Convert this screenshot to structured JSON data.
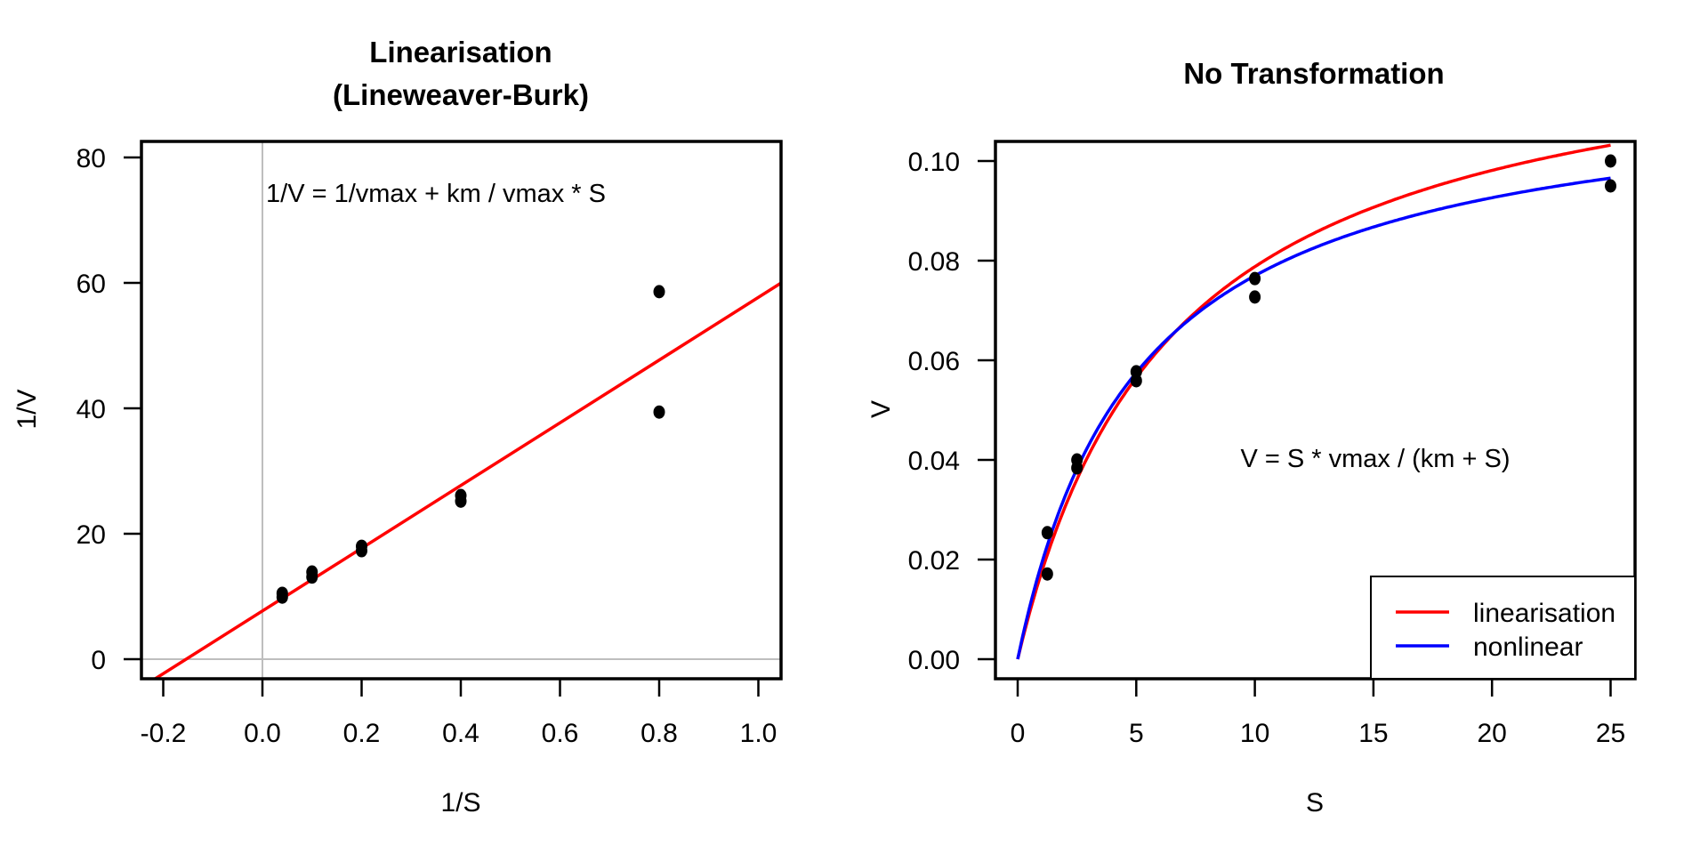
{
  "chart_data": [
    {
      "type": "scatter",
      "title_lines": [
        "Linearisation",
        "(Lineweaver-Burk)"
      ],
      "xlabel": "1/S",
      "ylabel": "1/V",
      "xlim": [
        -0.2,
        1.0
      ],
      "ylim": [
        0,
        80
      ],
      "xticks": [
        -0.2,
        0.0,
        0.2,
        0.4,
        0.6,
        0.8,
        1.0
      ],
      "xtick_labels": [
        "-0.2",
        "0.0",
        "0.2",
        "0.4",
        "0.6",
        "0.8",
        "1.0"
      ],
      "yticks": [
        0,
        20,
        40,
        60,
        80
      ],
      "ytick_labels": [
        "0",
        "20",
        "40",
        "60",
        "80"
      ],
      "reference_lines": {
        "x": 0,
        "y": 0,
        "color": "#bebebe"
      },
      "annotation": "1/V = 1/vmax + km / vmax * S",
      "points": {
        "x": [
          0.04,
          0.04,
          0.1,
          0.1,
          0.2,
          0.2,
          0.4,
          0.4,
          0.8,
          0.8
        ],
        "y": [
          10.5,
          9.9,
          13.9,
          13.1,
          18.0,
          17.3,
          26.1,
          25.2,
          58.6,
          39.4
        ],
        "color": "#000000"
      },
      "fit_line": {
        "name": "linearisation",
        "intercept": 7.69,
        "slope": 50.0,
        "color": "#ff0000"
      }
    },
    {
      "type": "scatter",
      "title_lines": [
        "No Transformation"
      ],
      "xlabel": "S",
      "ylabel": "V",
      "xlim": [
        0,
        25
      ],
      "ylim": [
        0,
        0.1
      ],
      "xticks": [
        0,
        5,
        10,
        15,
        20,
        25
      ],
      "xtick_labels": [
        "0",
        "5",
        "10",
        "15",
        "20",
        "25"
      ],
      "yticks": [
        0.0,
        0.02,
        0.04,
        0.06,
        0.08,
        0.1
      ],
      "ytick_labels": [
        "0.00",
        "0.02",
        "0.04",
        "0.06",
        "0.08",
        "0.10"
      ],
      "annotation": "V = S * vmax / (km + S)",
      "points": {
        "x": [
          1.25,
          1.25,
          2.5,
          2.5,
          5,
          5,
          10,
          10,
          25,
          25
        ],
        "y": [
          0.0254,
          0.0171,
          0.04,
          0.0384,
          0.0577,
          0.0559,
          0.0764,
          0.0727,
          0.1,
          0.095
        ],
        "color": "#000000"
      },
      "series": [
        {
          "name": "linearisation",
          "model": "michaelis-menten",
          "vmax": 0.13,
          "km": 6.5,
          "color": "#ff0000"
        },
        {
          "name": "nonlinear",
          "model": "michaelis-menten",
          "vmax": 0.1163,
          "km": 5.11,
          "color": "#0000ff"
        }
      ],
      "legend": {
        "position": "bottom-right",
        "entries": [
          {
            "label": "linearisation",
            "color": "#ff0000"
          },
          {
            "label": "nonlinear",
            "color": "#0000ff"
          }
        ]
      }
    }
  ]
}
